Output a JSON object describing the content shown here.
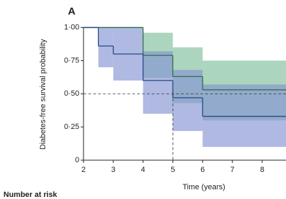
{
  "chart_data": {
    "type": "step",
    "panel_label": "A",
    "ylabel": "Diabetes-free survival probability",
    "xlabel": "Time (years)",
    "footer": "Number at risk",
    "xlim": [
      2,
      8.8
    ],
    "ylim": [
      0,
      1.05
    ],
    "xticks": [
      2,
      3,
      4,
      5,
      6,
      7,
      8
    ],
    "yticks": [
      {
        "value": 0,
        "label": "0"
      },
      {
        "value": 0.25,
        "label": "0·25"
      },
      {
        "value": 0.5,
        "label": "0·50"
      },
      {
        "value": 0.75,
        "label": "0·75"
      },
      {
        "value": 1,
        "label": "1·00"
      }
    ],
    "reference": {
      "y": 0.5,
      "x": 5
    },
    "series": [
      {
        "color": "#2e6e4a",
        "band_color": "#7fbf9a",
        "x": [
          2,
          4,
          5,
          6
        ],
        "values": [
          1,
          0.79,
          0.63,
          0.53
        ],
        "lower": [
          null,
          0.62,
          0.43,
          0.3
        ],
        "upper": [
          null,
          0.96,
          0.85,
          0.75
        ]
      },
      {
        "color": "#25468a",
        "band_color": "#8494d2",
        "x": [
          2,
          2.5,
          3,
          4,
          5,
          6
        ],
        "values": [
          1,
          0.86,
          0.8,
          0.6,
          0.47,
          0.33
        ],
        "lower": [
          null,
          0.7,
          0.6,
          0.35,
          0.22,
          0.1
        ],
        "upper": [
          null,
          1,
          1,
          0.82,
          0.68,
          0.57
        ]
      }
    ]
  }
}
